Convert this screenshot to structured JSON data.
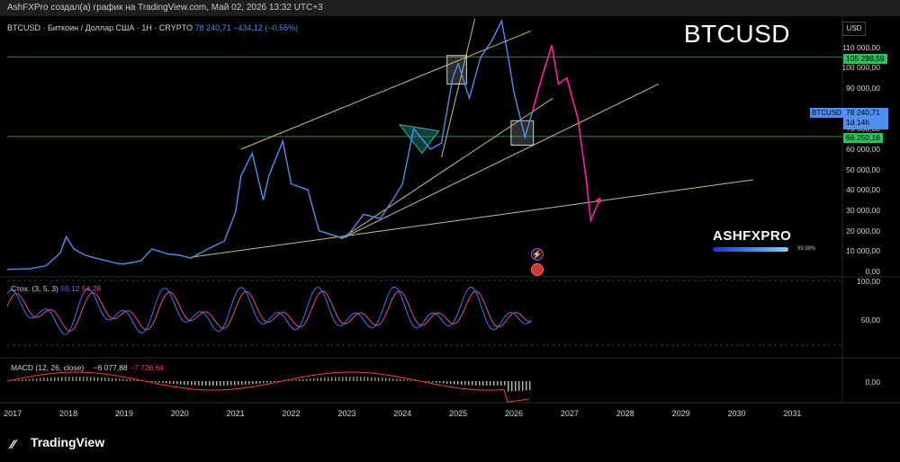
{
  "top_bar": {
    "text": "AshFXPro создал(а) график на TradingView.com, Май 02, 2026 13:32 UTC+3"
  },
  "symbol_info": {
    "label": "BTCUSD · Биткоин / Доллар США · 1Н · CRYPTO",
    "price": "78 240,71",
    "change": "−434,12 (−0,55%)"
  },
  "big_ticker": "BTCUSD",
  "currency": "USD",
  "price_axis_ticks": [
    "110 000,00",
    "100 000,00",
    "90 000,00",
    "70 000,00",
    "60 000,00",
    "50 000,00",
    "40 000,00",
    "30 000,00",
    "20 000,00",
    "10 000,00",
    "0,00"
  ],
  "price_tags": {
    "upper_level": "105 298,59",
    "lower_level": "66 250,16",
    "current_symbol": "BTCUSD",
    "current_price": "78 240,71",
    "current_countdown": "1d 14h"
  },
  "stoch_panel": {
    "label": "Стох. (3, 5, 3)",
    "k_value": "59,12",
    "d_value": "54,26",
    "ticks": [
      "100,00",
      "50,00"
    ]
  },
  "macd_panel": {
    "label": "MACD (12, 26, close)",
    "macd_value": "−6 077,88",
    "signal_value": "−7 726,64",
    "ticks": [
      "0,00"
    ]
  },
  "x_axis_ticks": [
    "2017",
    "2018",
    "2019",
    "2020",
    "2021",
    "2022",
    "2023",
    "2024",
    "2025",
    "2026",
    "2027",
    "2028",
    "2029",
    "2030",
    "2031"
  ],
  "watermark": {
    "brand": "ASHFXPRO",
    "percent": "99.99%"
  },
  "footer_logo": "TradingView",
  "colors": {
    "price_line": "#4e8ff0",
    "trendline": "#c9c27a",
    "level_line": "#2e8b2e",
    "projection": "#ff1fa8",
    "stoch_k": "#4e6bff",
    "stoch_d": "#e0508a",
    "macd_line": "#ff3b3b"
  },
  "chart_data": {
    "type": "line",
    "title": "BTCUSD",
    "xlabel": "",
    "ylabel": "",
    "ylim": [
      0,
      120000
    ],
    "x_range": [
      2016.9,
      2031.9
    ],
    "series": [
      {
        "x": [
          2016.9,
          2017.3,
          2017.6,
          2017.85,
          2017.96,
          2018.1,
          2018.3,
          2018.5,
          2018.9,
          2019.0,
          2019.3,
          2019.5,
          2019.8,
          2020.0,
          2020.2,
          2020.5,
          2020.8,
          2021.0,
          2021.1,
          2021.3,
          2021.5,
          2021.6,
          2021.85,
          2022.0,
          2022.3,
          2022.5,
          2022.9,
          2023.0,
          2023.3,
          2023.6,
          2023.8,
          2024.0,
          2024.2,
          2024.5,
          2024.7,
          2024.9,
          2025.0,
          2025.2,
          2025.4,
          2025.6,
          2025.78,
          2025.9,
          2026.0,
          2026.2,
          2026.33
        ],
        "values": [
          1000,
          1300,
          2800,
          9000,
          17000,
          11000,
          8000,
          6500,
          3800,
          3700,
          5200,
          11000,
          8500,
          8000,
          6500,
          11000,
          15000,
          29000,
          47000,
          58000,
          35000,
          47000,
          64000,
          43000,
          40000,
          20000,
          16500,
          17000,
          28000,
          26000,
          34000,
          43000,
          70000,
          60000,
          63000,
          95000,
          102000,
          85000,
          105000,
          113000,
          123000,
          105000,
          88000,
          66000,
          78240
        ]
      },
      {
        "name": "projection",
        "x": [
          2026.33,
          2026.5,
          2026.68,
          2026.8,
          2026.95,
          2027.15,
          2027.3,
          2027.38,
          2027.55
        ],
        "values": [
          78240,
          95000,
          111000,
          92000,
          95000,
          75000,
          45000,
          25000,
          36000
        ]
      }
    ],
    "levels": [
      105298.59,
      66250.16
    ],
    "stochastic": {
      "k": 59.12,
      "d": 54.26,
      "ylim": [
        0,
        100
      ]
    },
    "macd": {
      "macd": -6077.88,
      "signal": -7726.64
    }
  }
}
